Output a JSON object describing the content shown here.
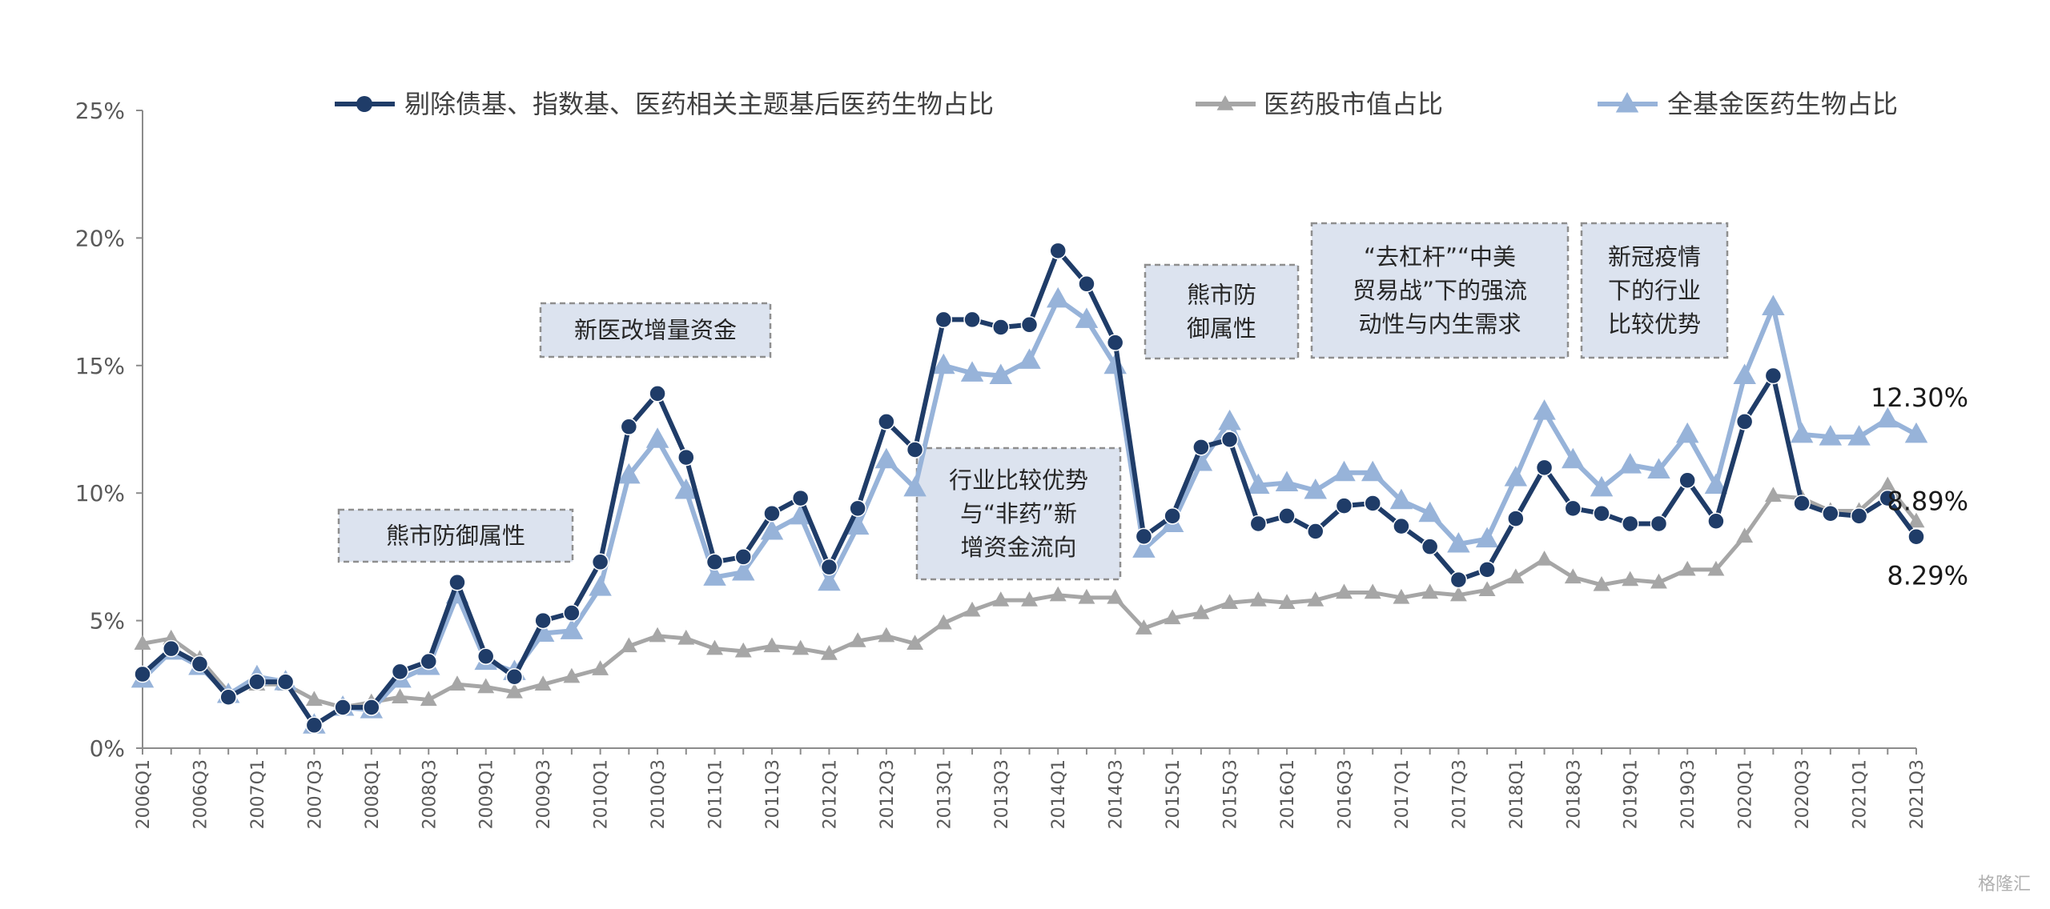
{
  "chart_data": {
    "type": "line",
    "x": [
      "2006Q1",
      "2006Q2",
      "2006Q3",
      "2006Q4",
      "2007Q1",
      "2007Q2",
      "2007Q3",
      "2007Q4",
      "2008Q1",
      "2008Q2",
      "2008Q3",
      "2008Q4",
      "2009Q1",
      "2009Q2",
      "2009Q3",
      "2009Q4",
      "2010Q1",
      "2010Q2",
      "2010Q3",
      "2010Q4",
      "2011Q1",
      "2011Q2",
      "2011Q3",
      "2011Q4",
      "2012Q1",
      "2012Q2",
      "2012Q3",
      "2012Q4",
      "2013Q1",
      "2013Q2",
      "2013Q3",
      "2013Q4",
      "2014Q1",
      "2014Q2",
      "2014Q3",
      "2014Q4",
      "2015Q1",
      "2015Q2",
      "2015Q3",
      "2015Q4",
      "2016Q1",
      "2016Q2",
      "2016Q3",
      "2016Q4",
      "2017Q1",
      "2017Q2",
      "2017Q3",
      "2017Q4",
      "2018Q1",
      "2018Q2",
      "2018Q3",
      "2018Q4",
      "2019Q1",
      "2019Q2",
      "2019Q3",
      "2019Q4",
      "2020Q1",
      "2020Q2",
      "2020Q3",
      "2020Q4",
      "2021Q1",
      "2021Q2",
      "2021Q3"
    ],
    "x_tick_labels": [
      "2006Q1",
      "2006Q3",
      "2007Q1",
      "2007Q3",
      "2008Q1",
      "2008Q3",
      "2009Q1",
      "2009Q3",
      "2010Q1",
      "2010Q3",
      "2011Q1",
      "2011Q3",
      "2012Q1",
      "2012Q3",
      "2013Q1",
      "2013Q3",
      "2014Q1",
      "2014Q3",
      "2015Q1",
      "2015Q3",
      "2016Q1",
      "2016Q3",
      "2017Q1",
      "2017Q3",
      "2018Q1",
      "2018Q3",
      "2019Q1",
      "2019Q3",
      "2020Q1",
      "2020Q3",
      "2021Q1",
      "2021Q3"
    ],
    "ylim": [
      0,
      25
    ],
    "y_ticks": [
      0,
      5,
      10,
      15,
      20,
      25
    ],
    "y_tick_labels": [
      "0%",
      "5%",
      "10%",
      "15%",
      "20%",
      "25%"
    ],
    "grid": false,
    "legend_position": "top",
    "series": [
      {
        "name": "剔除债基、指数基、医药相关主题基后医药生物占比",
        "color": "#1F3C68",
        "marker": "circle",
        "values": [
          2.9,
          3.9,
          3.3,
          2.0,
          2.6,
          2.6,
          0.9,
          1.6,
          1.6,
          3.0,
          3.4,
          6.5,
          3.6,
          2.8,
          5.0,
          5.3,
          7.3,
          12.6,
          13.9,
          11.4,
          7.3,
          7.5,
          9.2,
          9.8,
          7.1,
          9.4,
          12.8,
          11.7,
          16.8,
          16.8,
          16.5,
          16.6,
          19.5,
          18.2,
          15.9,
          8.3,
          9.1,
          11.8,
          12.1,
          8.8,
          9.1,
          8.5,
          9.5,
          9.6,
          8.7,
          7.9,
          6.6,
          7.0,
          9.0,
          11.0,
          9.4,
          9.2,
          8.8,
          8.8,
          10.5,
          8.9,
          12.8,
          14.6,
          9.6,
          9.2,
          9.1,
          9.8,
          8.29
        ]
      },
      {
        "name": "医药股市值占比",
        "color": "#A6A6A6",
        "marker": "triangle",
        "values": [
          4.1,
          4.3,
          3.5,
          2.2,
          2.5,
          2.5,
          1.9,
          1.6,
          1.8,
          2.0,
          1.9,
          2.5,
          2.4,
          2.2,
          2.5,
          2.8,
          3.1,
          4.0,
          4.4,
          4.3,
          3.9,
          3.8,
          4.0,
          3.9,
          3.7,
          4.2,
          4.4,
          4.1,
          4.9,
          5.4,
          5.8,
          5.8,
          6.0,
          5.9,
          5.9,
          4.7,
          5.1,
          5.3,
          5.7,
          5.8,
          5.7,
          5.8,
          6.1,
          6.1,
          5.9,
          6.1,
          6.0,
          6.2,
          6.7,
          7.4,
          6.7,
          6.4,
          6.6,
          6.5,
          7.0,
          7.0,
          8.3,
          9.9,
          9.8,
          9.3,
          9.3,
          10.3,
          8.89
        ]
      },
      {
        "name": "全基金医药生物占比",
        "color": "#97B3D9",
        "marker": "triangle",
        "values": [
          2.7,
          3.8,
          3.2,
          2.1,
          2.8,
          2.6,
          0.9,
          1.6,
          1.5,
          2.7,
          3.2,
          6.0,
          3.4,
          3.0,
          4.5,
          4.6,
          6.3,
          10.7,
          12.1,
          10.1,
          6.7,
          6.9,
          8.5,
          9.1,
          6.5,
          8.7,
          11.3,
          10.2,
          15.0,
          14.7,
          14.6,
          15.2,
          17.6,
          16.8,
          15.0,
          7.8,
          8.8,
          11.2,
          12.8,
          10.3,
          10.4,
          10.1,
          10.8,
          10.8,
          9.7,
          9.2,
          8.0,
          8.2,
          10.6,
          13.2,
          11.3,
          10.2,
          11.1,
          10.9,
          12.3,
          10.3,
          14.6,
          17.3,
          12.3,
          12.2,
          12.2,
          12.9,
          12.3
        ]
      }
    ],
    "end_labels": {
      "fund_total": "12.30%",
      "market_cap": "8.89%",
      "ex_bond_index": "8.29%"
    },
    "annotations": [
      {
        "lines": [
          "熊市防御属性"
        ],
        "anchor_x": "2008Q3"
      },
      {
        "lines": [
          "新医改增量资金"
        ],
        "anchor_x": "2010Q3"
      },
      {
        "lines": [
          "行业比较优势",
          "与“非药”新",
          "增资金流向"
        ],
        "anchor_x": "2013Q3"
      },
      {
        "lines": [
          "熊市防",
          "御属性"
        ],
        "anchor_x": "2015Q1"
      },
      {
        "lines": [
          "“去杠杆”“中美",
          "贸易战”下的强流",
          "动性与内生需求"
        ],
        "anchor_x": "2017Q3"
      },
      {
        "lines": [
          "新冠疫情",
          "下的行业",
          "比较优势"
        ],
        "anchor_x": "2019Q2"
      }
    ]
  },
  "watermark": "格隆汇"
}
